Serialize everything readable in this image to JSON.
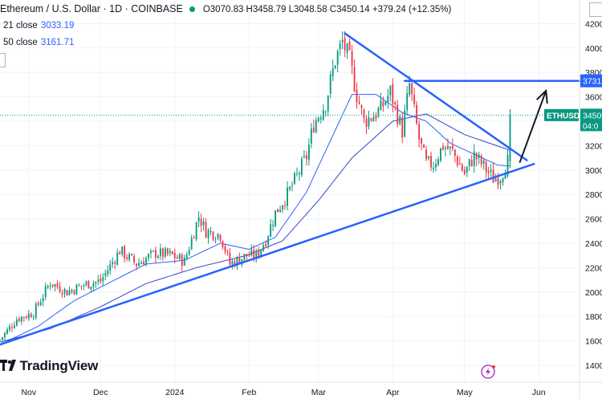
{
  "header": {
    "title": "Ethereum / U.S. Dollar · 1D · COINBASE",
    "ohlc": "O3070.83 H3458.79 L3048.58 C3450.14 +379.24 (+12.35%)"
  },
  "indicators": [
    {
      "label": "21 close",
      "value": "3033.19",
      "color": "#2962ff"
    },
    {
      "label": "50 close",
      "value": "3161.71",
      "color": "#2962ff"
    }
  ],
  "logo_text": "TradingView",
  "colors": {
    "up": "#089981",
    "down": "#f23645",
    "trend": "#2962ff",
    "ma21": "#2962ff",
    "ma50": "#3344cc"
  },
  "chart_data": {
    "type": "candlestick",
    "symbol": "ETHUSD",
    "x_tick_labels": [
      "Nov",
      "Dec",
      "2024",
      "Feb",
      "Mar",
      "Apr",
      "May",
      "Jun"
    ],
    "x_tick_dates": [
      "2023-11-01",
      "2023-12-01",
      "2024-01-01",
      "2024-02-01",
      "2024-03-01",
      "2024-04-01",
      "2024-05-01",
      "2024-06-01"
    ],
    "y_ticks": [
      1400,
      1600,
      1800,
      2000,
      2200,
      2400,
      2600,
      2800,
      3000,
      3200,
      3400,
      3600,
      3800,
      4000,
      4200
    ],
    "ylim": [
      1330,
      4280
    ],
    "xlim": [
      "2023-10-20",
      "2024-06-18"
    ],
    "last_price_label": "3450",
    "last_price": 3450.14,
    "price_tag_symbol": "ETHUSD",
    "countdown_label": "04:0",
    "resistance_label": "3731",
    "resistance": 3731,
    "close_anchors": [
      [
        "2023-10-20",
        1610
      ],
      [
        "2023-10-27",
        1780
      ],
      [
        "2023-11-03",
        1830
      ],
      [
        "2023-11-10",
        2080
      ],
      [
        "2023-11-17",
        2000
      ],
      [
        "2023-11-24",
        2060
      ],
      [
        "2023-12-01",
        2090
      ],
      [
        "2023-12-09",
        2340
      ],
      [
        "2023-12-16",
        2230
      ],
      [
        "2023-12-24",
        2320
      ],
      [
        "2023-12-31",
        2300
      ],
      [
        "2024-01-05",
        2250
      ],
      [
        "2024-01-11",
        2620
      ],
      [
        "2024-01-14",
        2500
      ],
      [
        "2024-01-20",
        2470
      ],
      [
        "2024-01-24",
        2230
      ],
      [
        "2024-01-31",
        2300
      ],
      [
        "2024-02-04",
        2300
      ],
      [
        "2024-02-08",
        2430
      ],
      [
        "2024-02-12",
        2650
      ],
      [
        "2024-02-17",
        2800
      ],
      [
        "2024-02-21",
        2950
      ],
      [
        "2024-02-25",
        3110
      ],
      [
        "2024-02-28",
        3380
      ],
      [
        "2024-03-04",
        3550
      ],
      [
        "2024-03-08",
        3900
      ],
      [
        "2024-03-11",
        4050
      ],
      [
        "2024-03-14",
        3900
      ],
      [
        "2024-03-17",
        3620
      ],
      [
        "2024-03-20",
        3400
      ],
      [
        "2024-03-24",
        3450
      ],
      [
        "2024-03-27",
        3500
      ],
      [
        "2024-03-31",
        3640
      ],
      [
        "2024-04-05",
        3320
      ],
      [
        "2024-04-08",
        3700
      ],
      [
        "2024-04-12",
        3250
      ],
      [
        "2024-04-15",
        3050
      ],
      [
        "2024-04-18",
        3050
      ],
      [
        "2024-04-22",
        3200
      ],
      [
        "2024-04-26",
        3150
      ],
      [
        "2024-05-01",
        2970
      ],
      [
        "2024-05-05",
        3120
      ],
      [
        "2024-05-09",
        3030
      ],
      [
        "2024-05-13",
        2930
      ],
      [
        "2024-05-16",
        2950
      ],
      [
        "2024-05-19",
        3070
      ],
      [
        "2024-05-20",
        3450
      ]
    ],
    "ma21_anchors": [
      [
        "2023-10-20",
        1570
      ],
      [
        "2023-11-05",
        1720
      ],
      [
        "2023-11-20",
        1930
      ],
      [
        "2023-12-05",
        2080
      ],
      [
        "2023-12-20",
        2230
      ],
      [
        "2024-01-05",
        2260
      ],
      [
        "2024-01-20",
        2400
      ],
      [
        "2024-02-01",
        2350
      ],
      [
        "2024-02-12",
        2450
      ],
      [
        "2024-02-25",
        2820
      ],
      [
        "2024-03-05",
        3200
      ],
      [
        "2024-03-15",
        3620
      ],
      [
        "2024-03-25",
        3620
      ],
      [
        "2024-04-05",
        3470
      ],
      [
        "2024-04-15",
        3400
      ],
      [
        "2024-04-25",
        3220
      ],
      [
        "2024-05-05",
        3130
      ],
      [
        "2024-05-15",
        3040
      ],
      [
        "2024-05-20",
        3033
      ]
    ],
    "ma50_anchors": [
      [
        "2023-10-20",
        1590
      ],
      [
        "2023-11-10",
        1700
      ],
      [
        "2023-12-01",
        1880
      ],
      [
        "2023-12-20",
        2070
      ],
      [
        "2024-01-10",
        2200
      ],
      [
        "2024-01-31",
        2300
      ],
      [
        "2024-02-15",
        2420
      ],
      [
        "2024-03-01",
        2750
      ],
      [
        "2024-03-15",
        3100
      ],
      [
        "2024-04-01",
        3400
      ],
      [
        "2024-04-15",
        3460
      ],
      [
        "2024-05-01",
        3290
      ],
      [
        "2024-05-20",
        3162
      ]
    ],
    "trendlines": [
      {
        "name": "support",
        "from": [
          "2023-10-20",
          1570
        ],
        "to": [
          "2024-05-30",
          3050
        ]
      },
      {
        "name": "resistance",
        "from": [
          "2024-03-12",
          4120
        ],
        "to": [
          "2024-05-27",
          3080
        ]
      },
      {
        "name": "horizontal",
        "from": [
          "2024-04-06",
          3731
        ],
        "to": [
          "2024-06-18",
          3731
        ]
      }
    ],
    "projection_arrow": {
      "from": [
        "2024-05-24",
        3060
      ],
      "to": [
        "2024-06-04",
        3650
      ]
    }
  }
}
